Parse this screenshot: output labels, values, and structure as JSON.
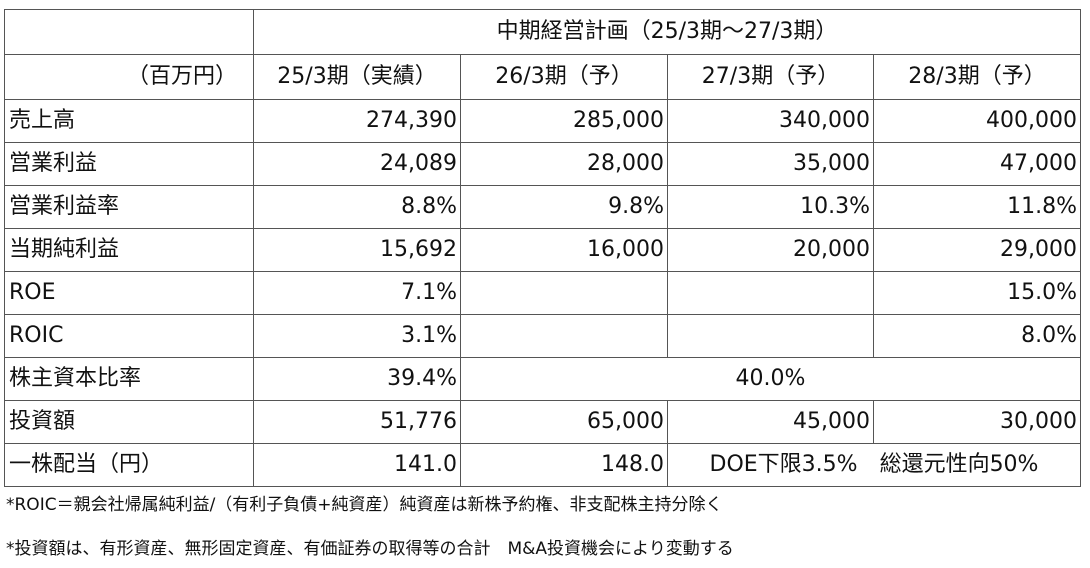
{
  "header": {
    "plan_title": "中期経営計画（25/3期～27/3期）",
    "unit": "（百万円）",
    "columns": [
      "25/3期（実績）",
      "26/3期（予）",
      "27/3期（予）",
      "28/3期（予）"
    ]
  },
  "rows": [
    {
      "label": "売上高",
      "values": [
        "274,390",
        "285,000",
        "340,000",
        "400,000"
      ]
    },
    {
      "label": "営業利益",
      "values": [
        "24,089",
        "28,000",
        "35,000",
        "47,000"
      ]
    },
    {
      "label": "営業利益率",
      "values": [
        "8.8%",
        "9.8%",
        "10.3%",
        "11.8%"
      ]
    },
    {
      "label": "当期純利益",
      "values": [
        "15,692",
        "16,000",
        "20,000",
        "29,000"
      ]
    },
    {
      "label": "ROE",
      "values": [
        "7.1%",
        "",
        "",
        "15.0%"
      ]
    },
    {
      "label": "ROIC",
      "values": [
        "3.1%",
        "",
        "",
        "8.0%"
      ]
    },
    {
      "label": "株主資本比率",
      "actual": "39.4%",
      "plan": "40.0%"
    },
    {
      "label": "投資額",
      "values": [
        "51,776",
        "65,000",
        "45,000",
        "30,000"
      ]
    },
    {
      "label": "一株配当（円）",
      "actual": "141.0",
      "fy26": "148.0",
      "policy": "DOE下限3.5%　総還元性向50%"
    }
  ],
  "notes": [
    "*ROIC＝親会社帰属純利益/（有利子負債+純資産）純資産は新株予約権、非支配株主持分除く",
    "*投資額は、有形資産、無形固定資産、有価証券の取得等の合計　M&A投資機会により変動する"
  ]
}
